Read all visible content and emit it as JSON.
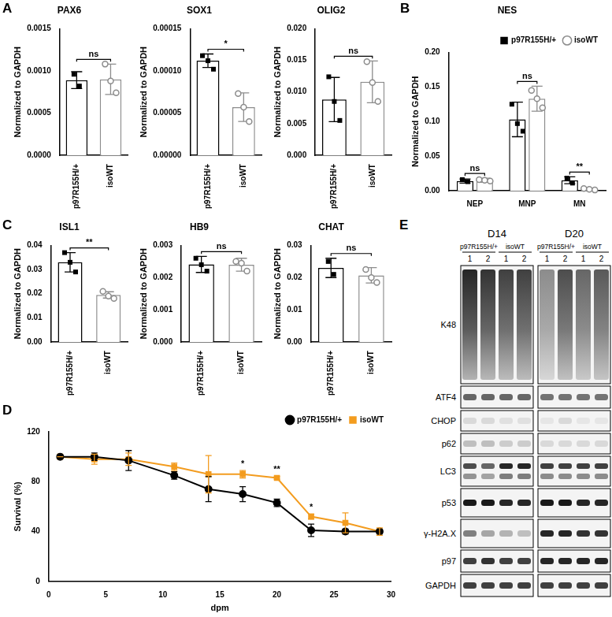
{
  "chart_data": [
    {
      "panel": "A",
      "type": "bar",
      "title": "PAX6",
      "y_label": "Normalized to GAPDH",
      "categories": [
        "p97R155H/+",
        "isoWT"
      ],
      "values": [
        0.00089,
        0.0009
      ],
      "errors": [
        0.0001,
        0.00018
      ],
      "points": [
        [
          0.00096,
          0.00082
        ],
        [
          0.00108,
          0.00088,
          0.00074
        ]
      ],
      "colors": [
        "#000000",
        "#8c8c8c"
      ],
      "ylim": [
        0,
        0.0015
      ],
      "yticks": [
        {
          "value": 0,
          "label": "0.0000"
        },
        {
          "value": 0.0005,
          "label": "0.0005"
        },
        {
          "value": 0.001,
          "label": "0.0010"
        },
        {
          "value": 0.0015,
          "label": "0.0015"
        }
      ],
      "annotations": [
        {
          "text": "ns"
        }
      ],
      "grid": false
    },
    {
      "type": "bar",
      "title": "SOX1",
      "y_label": "Normalized to GAPDH",
      "categories": [
        "p97R155H/+",
        "isoWT"
      ],
      "values": [
        0.000112,
        5.7e-05
      ],
      "errors": [
        8e-06,
        1.7e-05
      ],
      "points": [
        [
          0.000118,
          0.000112,
          0.000102
        ],
        [
          7.3e-05,
          5.7e-05,
          4e-05
        ]
      ],
      "colors": [
        "#000000",
        "#8c8c8c"
      ],
      "ylim": [
        0,
        0.00015
      ],
      "yticks": [
        {
          "value": 0,
          "label": "0.00000"
        },
        {
          "value": 5e-05,
          "label": "0.00005"
        },
        {
          "value": 0.0001,
          "label": "0.00010"
        },
        {
          "value": 0.00015,
          "label": "0.00015"
        }
      ],
      "annotations": [
        {
          "text": "*"
        }
      ],
      "grid": false
    },
    {
      "type": "bar",
      "title": "OLIG2",
      "y_label": "Normalized to GAPDH",
      "categories": [
        "p97R155H/+",
        "isoWT"
      ],
      "values": [
        0.0088,
        0.0116
      ],
      "errors": [
        0.0035,
        0.0033
      ],
      "points": [
        [
          0.0124,
          0.0085,
          0.0055
        ],
        [
          0.0148,
          0.0115,
          0.0085
        ]
      ],
      "colors": [
        "#000000",
        "#8c8c8c"
      ],
      "ylim": [
        0,
        0.02
      ],
      "yticks": [
        {
          "value": 0,
          "label": "0.000"
        },
        {
          "value": 0.005,
          "label": "0.005"
        },
        {
          "value": 0.01,
          "label": "0.010"
        },
        {
          "value": 0.015,
          "label": "0.015"
        },
        {
          "value": 0.02,
          "label": "0.020"
        }
      ],
      "annotations": [
        {
          "text": "ns"
        }
      ],
      "grid": false
    },
    {
      "panel": "B",
      "type": "bar",
      "title": "NES",
      "y_label": "Normalized to GAPDH",
      "categories": [
        "NEP",
        "MNP",
        "MN"
      ],
      "series": [
        {
          "name": "p97R155H/+",
          "color": "#000000",
          "marker": "square",
          "values": [
            0.014,
            0.103,
            0.015
          ],
          "errors": [
            0.003,
            0.025,
            0.005
          ],
          "points": [
            [
              0.016,
              0.013
            ],
            [
              0.125,
              0.097,
              0.086
            ],
            [
              0.018,
              0.011
            ]
          ]
        },
        {
          "name": "isoWT",
          "color": "#8c8c8c",
          "marker": "circle",
          "values": [
            0.015,
            0.133,
            0.002
          ],
          "errors": [
            0.003,
            0.018,
            0.0015
          ],
          "points": [
            [
              0.016,
              0.015,
              0.014
            ],
            [
              0.145,
              0.133,
              0.12
            ],
            [
              0.003,
              0.002,
              0.001
            ]
          ]
        }
      ],
      "ylim": [
        0,
        0.2
      ],
      "yticks": [
        {
          "value": 0,
          "label": "0.00"
        },
        {
          "value": 0.05,
          "label": "0.05"
        },
        {
          "value": 0.1,
          "label": "0.10"
        },
        {
          "value": 0.15,
          "label": "0.15"
        },
        {
          "value": 0.2,
          "label": "0.20"
        }
      ],
      "annotations": [
        {
          "category": "NEP",
          "text": "ns"
        },
        {
          "category": "MNP",
          "text": "ns"
        },
        {
          "category": "MN",
          "text": "**"
        }
      ],
      "legend": "top right",
      "grid": false
    },
    {
      "panel": "C",
      "type": "bar",
      "title": "ISL1",
      "y_label": "Normalized to GAPDH",
      "categories": [
        "p97R155H/+",
        "isoWT"
      ],
      "values": [
        0.033,
        0.0195
      ],
      "errors": [
        0.004,
        0.0013
      ],
      "points": [
        [
          0.037,
          0.033,
          0.029
        ],
        [
          0.021,
          0.019,
          0.018
        ]
      ],
      "colors": [
        "#000000",
        "#8c8c8c"
      ],
      "ylim": [
        0,
        0.04
      ],
      "yticks": [
        {
          "value": 0,
          "label": "0.00"
        },
        {
          "value": 0.01,
          "label": "0.01"
        },
        {
          "value": 0.02,
          "label": "0.02"
        },
        {
          "value": 0.03,
          "label": "0.03"
        },
        {
          "value": 0.04,
          "label": "0.04"
        }
      ],
      "annotations": [
        {
          "text": "**"
        }
      ],
      "grid": false
    },
    {
      "type": "bar",
      "title": "HB9",
      "y_label": "Normalized to GAPDH",
      "categories": [
        "p97R155H/+",
        "isoWT"
      ],
      "values": [
        0.00241,
        0.0024
      ],
      "errors": [
        0.00025,
        0.0002
      ],
      "points": [
        [
          0.0026,
          0.0024,
          0.0022
        ],
        [
          0.0025,
          0.00245,
          0.0022
        ]
      ],
      "colors": [
        "#000000",
        "#8c8c8c"
      ],
      "ylim": [
        0,
        0.003
      ],
      "yticks": [
        {
          "value": 0,
          "label": "0.000"
        },
        {
          "value": 0.001,
          "label": "0.001"
        },
        {
          "value": 0.002,
          "label": "0.002"
        },
        {
          "value": 0.003,
          "label": "0.003"
        }
      ],
      "annotations": [
        {
          "text": "ns"
        }
      ],
      "grid": false
    },
    {
      "type": "bar",
      "title": "CHAT",
      "y_label": "Normalized to GAPDH",
      "categories": [
        "p97R155H/+",
        "isoWT"
      ],
      "values": [
        0.023,
        0.0207
      ],
      "errors": [
        0.003,
        0.0024
      ],
      "points": [
        [
          0.025,
          0.021
        ],
        [
          0.0225,
          0.02,
          0.0185
        ]
      ],
      "colors": [
        "#000000",
        "#8c8c8c"
      ],
      "ylim": [
        0,
        0.03
      ],
      "yticks": [
        {
          "value": 0,
          "label": "0.00"
        },
        {
          "value": 0.01,
          "label": "0.01"
        },
        {
          "value": 0.02,
          "label": "0.02"
        },
        {
          "value": 0.03,
          "label": "0.03"
        }
      ],
      "annotations": [
        {
          "text": "ns"
        }
      ],
      "grid": false
    },
    {
      "panel": "D",
      "type": "line",
      "x_label": "dpm",
      "y_label": "Survival (%)",
      "x": [
        1,
        4,
        7,
        11,
        14,
        17,
        20,
        23,
        26,
        29
      ],
      "series": [
        {
          "name": "p97R155H/+",
          "color": "#000000",
          "marker": "circle",
          "values": [
            100,
            100,
            97,
            85,
            74,
            70,
            63,
            41,
            40,
            40
          ],
          "errors": [
            0,
            3,
            8,
            3,
            10,
            6,
            3,
            5,
            2,
            2
          ]
        },
        {
          "name": "isoWT",
          "color": "#f39c1f",
          "marker": "square",
          "values": [
            100,
            98,
            98,
            92,
            86,
            86,
            83,
            52,
            47,
            40
          ],
          "errors": [
            0,
            4,
            5,
            3,
            15,
            3,
            1,
            2,
            8,
            3
          ]
        }
      ],
      "xlim": [
        0,
        30
      ],
      "xticks": [
        0,
        5,
        10,
        15,
        20,
        25,
        30
      ],
      "ylim": [
        0,
        120
      ],
      "yticks": [
        0,
        40,
        80,
        120
      ],
      "annotations": [
        {
          "x": 17,
          "text": "*"
        },
        {
          "x": 20,
          "text": "**"
        },
        {
          "x": 23,
          "text": "*"
        }
      ],
      "legend": "top right",
      "grid": false
    }
  ],
  "blot": {
    "panel": "E",
    "days": [
      "D14",
      "D20"
    ],
    "groups": [
      "p97R155H/+",
      "isoWT"
    ],
    "lanes": [
      "1",
      "2",
      "1",
      "2"
    ],
    "bands": [
      "K48",
      "ATF4",
      "CHOP",
      "p62",
      "LC3",
      "p53",
      "γ-H2A.X",
      "p97",
      "GAPDH"
    ]
  }
}
